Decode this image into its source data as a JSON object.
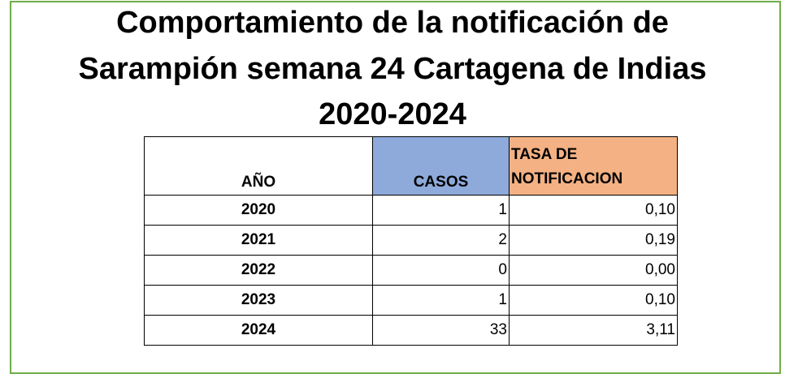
{
  "header": {
    "title_lines": [
      "Comportamiento de la notificación de",
      "Sarampión semana 24 Cartagena de Indias",
      "2020-2024"
    ]
  },
  "table": {
    "columns": [
      "AÑO",
      "CASOS",
      "TASA DE NOTIFICACION"
    ],
    "rows": [
      [
        "2020",
        "1",
        "0,10"
      ],
      [
        "2021",
        "2",
        "0,19"
      ],
      [
        "2022",
        "0",
        "0,00"
      ],
      [
        "2023",
        "1",
        "0,10"
      ],
      [
        "2024",
        "33",
        "3,11"
      ]
    ]
  }
}
